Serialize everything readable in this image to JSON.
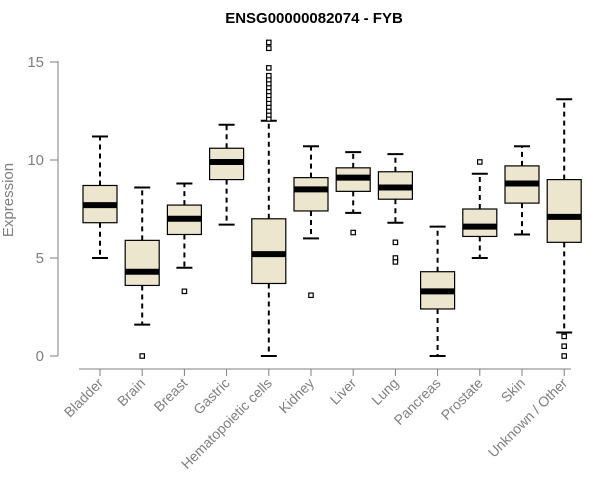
{
  "chart_data": {
    "type": "boxplot",
    "title": "ENSG00000082074 - FYB",
    "xlabel": "",
    "ylabel": "Expression",
    "ylim": [
      0,
      15.5
    ],
    "yticks": [
      0,
      5,
      10,
      15
    ],
    "box_color": "#ede6cf",
    "categories": [
      "Bladder",
      "Brain",
      "Breast",
      "Gastric",
      "Hematopoietic cells",
      "Kidney",
      "Liver",
      "Lung",
      "Pancreas",
      "Prostate",
      "Skin",
      "Unknown / Other"
    ],
    "boxes": [
      {
        "category": "Bladder",
        "whisker_low": 5.0,
        "q1": 6.8,
        "median": 7.7,
        "q3": 8.7,
        "whisker_high": 11.2,
        "outliers": []
      },
      {
        "category": "Brain",
        "whisker_low": 1.6,
        "q1": 3.6,
        "median": 4.3,
        "q3": 5.9,
        "whisker_high": 8.6,
        "outliers": [
          0.0
        ]
      },
      {
        "category": "Breast",
        "whisker_low": 4.5,
        "q1": 6.2,
        "median": 7.0,
        "q3": 7.7,
        "whisker_high": 8.8,
        "outliers": [
          3.3
        ]
      },
      {
        "category": "Gastric",
        "whisker_low": 6.7,
        "q1": 9.0,
        "median": 9.9,
        "q3": 10.6,
        "whisker_high": 11.8,
        "outliers": []
      },
      {
        "category": "Hematopoietic cells",
        "whisker_low": 0.0,
        "q1": 3.7,
        "median": 5.2,
        "q3": 7.0,
        "whisker_high": 12.0,
        "outliers": [
          12.1,
          12.3,
          12.5,
          12.7,
          12.9,
          13.1,
          13.3,
          13.5,
          13.7,
          13.9,
          14.1,
          14.3,
          14.7,
          15.7,
          16.0
        ]
      },
      {
        "category": "Kidney",
        "whisker_low": 6.0,
        "q1": 7.4,
        "median": 8.5,
        "q3": 9.1,
        "whisker_high": 10.7,
        "outliers": [
          3.1
        ]
      },
      {
        "category": "Liver",
        "whisker_low": 7.3,
        "q1": 8.4,
        "median": 9.1,
        "q3": 9.6,
        "whisker_high": 10.4,
        "outliers": [
          6.3
        ]
      },
      {
        "category": "Lung",
        "whisker_low": 6.8,
        "q1": 8.0,
        "median": 8.6,
        "q3": 9.4,
        "whisker_high": 10.3,
        "outliers": [
          5.8,
          5.0,
          4.8
        ]
      },
      {
        "category": "Pancreas",
        "whisker_low": 0.0,
        "q1": 2.4,
        "median": 3.3,
        "q3": 4.3,
        "whisker_high": 6.6,
        "outliers": []
      },
      {
        "category": "Prostate",
        "whisker_low": 5.0,
        "q1": 6.1,
        "median": 6.6,
        "q3": 7.5,
        "whisker_high": 9.3,
        "outliers": [
          9.9
        ]
      },
      {
        "category": "Skin",
        "whisker_low": 6.2,
        "q1": 7.8,
        "median": 8.8,
        "q3": 9.7,
        "whisker_high": 10.7,
        "outliers": []
      },
      {
        "category": "Unknown / Other",
        "whisker_low": 1.2,
        "q1": 5.8,
        "median": 7.1,
        "q3": 9.0,
        "whisker_high": 13.1,
        "outliers": [
          1.0,
          0.5,
          0.0
        ]
      }
    ]
  }
}
